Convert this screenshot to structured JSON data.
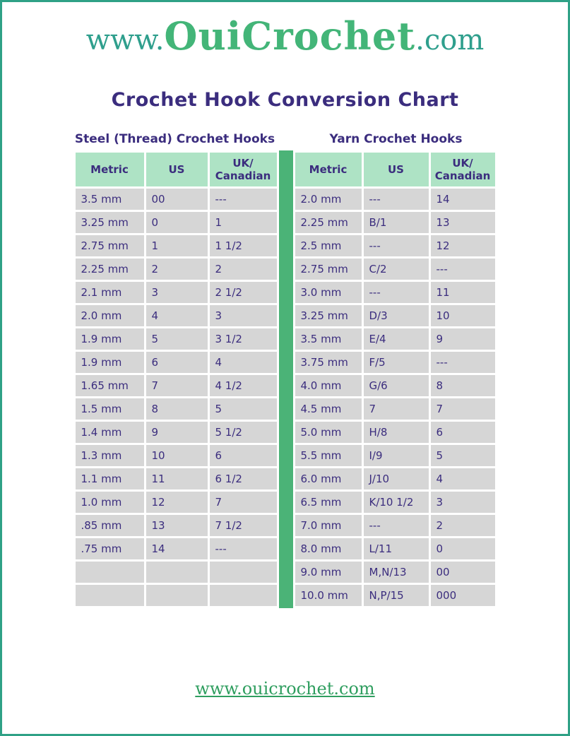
{
  "logo": {
    "prefix": "www.",
    "brand": "OuiCrochet",
    "suffix": ".com"
  },
  "title": "Crochet Hook Conversion Chart",
  "footer_link": "www.ouicrochet.com",
  "colors": {
    "page_border": "#2fa186",
    "title_text": "#3b2d7e",
    "header_bg": "#aee3c5",
    "row_bg": "#d6d6d6",
    "divider_green": "#4bb377",
    "logo_teal": "#2f9f8d",
    "logo_green": "#43b578",
    "footer_green": "#2f9e5f"
  },
  "tables": [
    {
      "title": "Steel (Thread) Crochet Hooks",
      "headers": [
        "Metric",
        "US",
        "UK/\nCanadian"
      ],
      "rows": [
        [
          "3.5 mm",
          "00",
          "---"
        ],
        [
          "3.25 mm",
          "0",
          "1"
        ],
        [
          "2.75 mm",
          "1",
          "1 1/2"
        ],
        [
          "2.25 mm",
          "2",
          "2"
        ],
        [
          "2.1 mm",
          "3",
          "2 1/2"
        ],
        [
          "2.0 mm",
          "4",
          "3"
        ],
        [
          "1.9 mm",
          "5",
          "3 1/2"
        ],
        [
          "1.9 mm",
          "6",
          "4"
        ],
        [
          "1.65 mm",
          "7",
          "4 1/2"
        ],
        [
          "1.5 mm",
          "8",
          "5"
        ],
        [
          "1.4 mm",
          "9",
          "5 1/2"
        ],
        [
          "1.3 mm",
          "10",
          "6"
        ],
        [
          "1.1 mm",
          "11",
          "6 1/2"
        ],
        [
          "1.0 mm",
          "12",
          "7"
        ],
        [
          ".85 mm",
          "13",
          "7 1/2"
        ],
        [
          ".75 mm",
          "14",
          "---"
        ],
        [
          "",
          "",
          ""
        ],
        [
          "",
          "",
          ""
        ]
      ]
    },
    {
      "title": "Yarn Crochet Hooks",
      "headers": [
        "Metric",
        "US",
        "UK/\nCanadian"
      ],
      "rows": [
        [
          "2.0 mm",
          "---",
          "14"
        ],
        [
          "2.25 mm",
          "B/1",
          "13"
        ],
        [
          "2.5 mm",
          "---",
          "12"
        ],
        [
          "2.75 mm",
          "C/2",
          "---"
        ],
        [
          "3.0 mm",
          "---",
          "11"
        ],
        [
          "3.25 mm",
          "D/3",
          "10"
        ],
        [
          "3.5 mm",
          "E/4",
          "9"
        ],
        [
          "3.75 mm",
          "F/5",
          "---"
        ],
        [
          "4.0 mm",
          "G/6",
          "8"
        ],
        [
          "4.5 mm",
          "7",
          "7"
        ],
        [
          "5.0 mm",
          "H/8",
          "6"
        ],
        [
          "5.5 mm",
          "I/9",
          "5"
        ],
        [
          "6.0 mm",
          "J/10",
          "4"
        ],
        [
          "6.5 mm",
          "K/10 1/2",
          "3"
        ],
        [
          "7.0 mm",
          "---",
          "2"
        ],
        [
          "8.0 mm",
          "L/11",
          "0"
        ],
        [
          "9.0 mm",
          "M,N/13",
          "00"
        ],
        [
          "10.0 mm",
          "N,P/15",
          "000"
        ]
      ]
    }
  ]
}
